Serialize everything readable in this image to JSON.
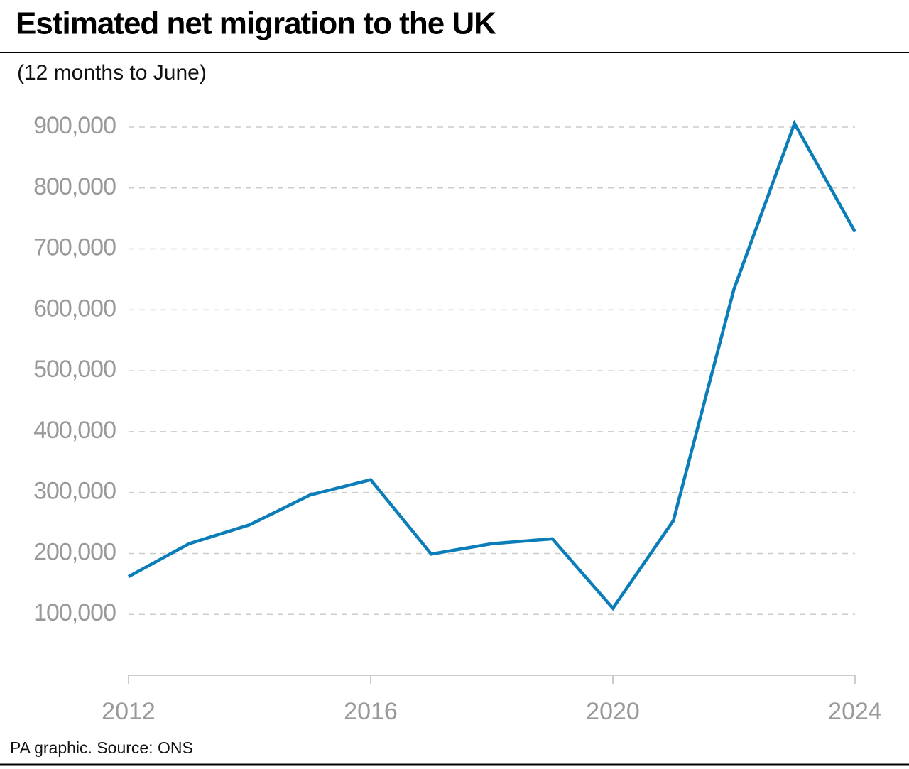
{
  "chart_data": {
    "type": "line",
    "title": "Estimated net migration to the UK",
    "subtitle": "(12 months to June)",
    "x": [
      2012,
      2013,
      2014,
      2015,
      2016,
      2017,
      2018,
      2019,
      2020,
      2021,
      2022,
      2023,
      2024
    ],
    "series": [
      {
        "name": "Net migration",
        "color": "#0b7db8",
        "values": [
          162000,
          216000,
          247000,
          296000,
          321000,
          199000,
          216000,
          224000,
          110000,
          254000,
          634000,
          906000,
          728000
        ]
      }
    ],
    "xlim": [
      2012,
      2024
    ],
    "xticks": [
      2012,
      2016,
      2020,
      2024
    ],
    "ylim": [
      0,
      900000
    ],
    "yticks": [
      {
        "value": 100000,
        "label": "100,000"
      },
      {
        "value": 200000,
        "label": "200,000"
      },
      {
        "value": 300000,
        "label": "300,000"
      },
      {
        "value": 400000,
        "label": "400,000"
      },
      {
        "value": 500000,
        "label": "500,000"
      },
      {
        "value": 600000,
        "label": "600,000"
      },
      {
        "value": 700000,
        "label": "700,000"
      },
      {
        "value": 800000,
        "label": "800,000"
      },
      {
        "value": 900000,
        "label": "900,000"
      }
    ],
    "grid": true,
    "source": "PA graphic. Source: ONS"
  }
}
